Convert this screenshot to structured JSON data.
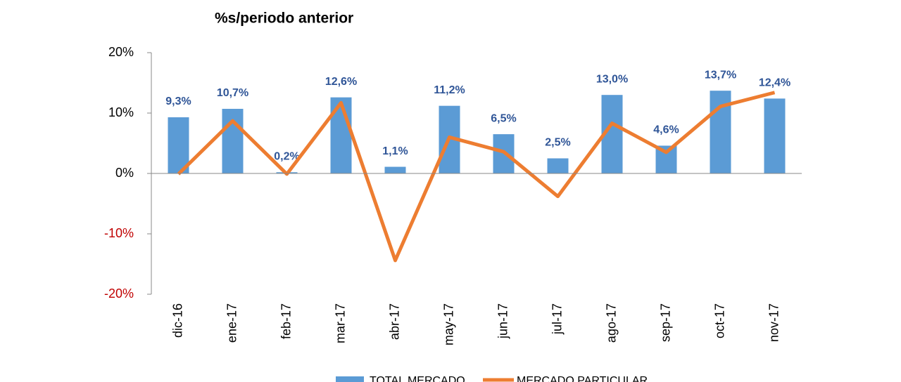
{
  "chart_data": {
    "type": "bar",
    "title": "%s/periodo anterior",
    "categories": [
      "dic-16",
      "ene-17",
      "feb-17",
      "mar-17",
      "abr-17",
      "may-17",
      "jun-17",
      "jul-17",
      "ago-17",
      "sep-17",
      "oct-17",
      "nov-17"
    ],
    "series": [
      {
        "name": "TOTAL MERCADO",
        "type": "bar",
        "color": "#5b9bd5",
        "values": [
          9.3,
          10.7,
          0.2,
          12.6,
          1.1,
          11.2,
          6.5,
          2.5,
          13.0,
          4.6,
          13.7,
          12.4
        ],
        "value_labels": [
          "9,3%",
          "10,7%",
          "0,2%",
          "12,6%",
          "1,1%",
          "11,2%",
          "6,5%",
          "2,5%",
          "13,0%",
          "4,6%",
          "13,7%",
          "12,4%"
        ]
      },
      {
        "name": "MERCADO PARTICULAR",
        "type": "line",
        "color": "#ed7d31",
        "values": [
          -0.1,
          8.7,
          -0.1,
          11.7,
          -14.4,
          6.0,
          3.6,
          -3.8,
          8.3,
          3.5,
          11.1,
          13.4
        ]
      }
    ],
    "ylim": [
      -20,
      20
    ],
    "yticks": [
      {
        "value": -20,
        "label": "-20%"
      },
      {
        "value": -10,
        "label": "-10%"
      },
      {
        "value": 0,
        "label": "0%"
      },
      {
        "value": 10,
        "label": "10%"
      },
      {
        "value": 20,
        "label": "20%"
      }
    ],
    "negative_tick_color": "#c00000"
  }
}
